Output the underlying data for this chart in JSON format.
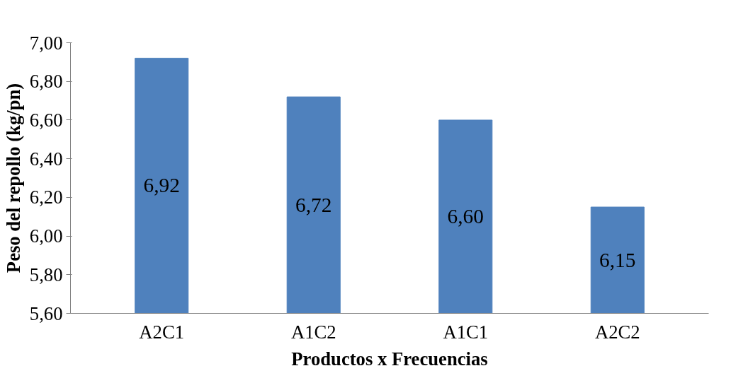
{
  "chart_data": {
    "type": "bar",
    "xlabel": "Productos x Frecuencias",
    "ylabel": "Peso del repollo (kg/pn)",
    "categories": [
      "A2C1",
      "A1C2",
      "A1C1",
      "A2C2"
    ],
    "values": [
      6.92,
      6.72,
      6.6,
      6.15
    ],
    "value_labels": [
      "6,92",
      "6,72",
      "6,60",
      "6,15"
    ],
    "color": "#4f81bd",
    "ylim": [
      5.6,
      7.0
    ],
    "yticks": [
      {
        "value": 5.6,
        "label": "5,60"
      },
      {
        "value": 5.8,
        "label": "5,80"
      },
      {
        "value": 6.0,
        "label": "6,00"
      },
      {
        "value": 6.2,
        "label": "6,20"
      },
      {
        "value": 6.4,
        "label": "6,40"
      },
      {
        "value": 6.6,
        "label": "6,60"
      },
      {
        "value": 6.8,
        "label": "6,80"
      },
      {
        "value": 7.0,
        "label": "7,00"
      }
    ],
    "grid": false
  }
}
